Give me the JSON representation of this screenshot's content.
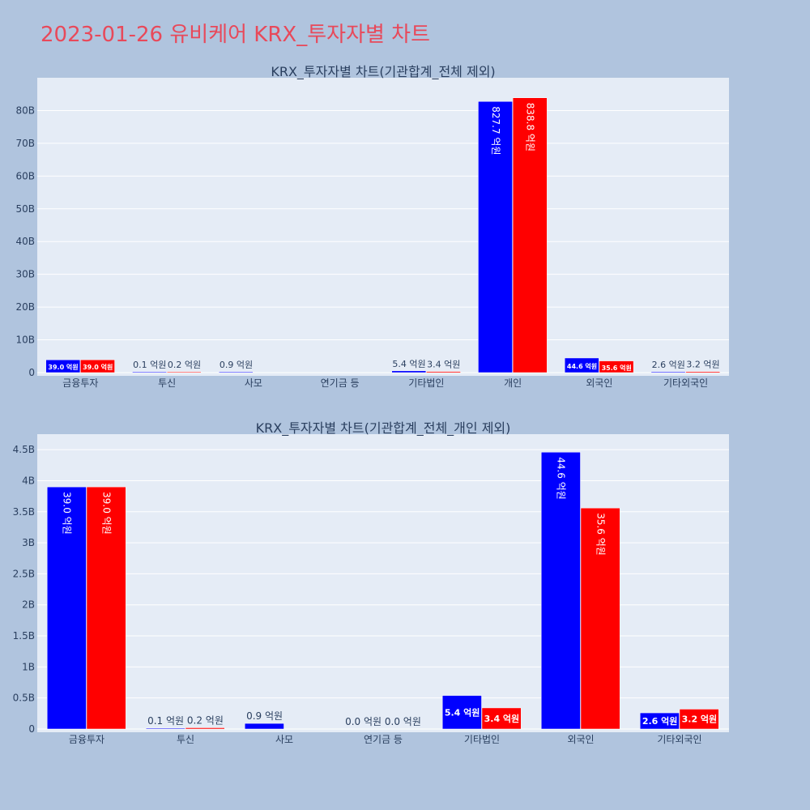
{
  "page": {
    "title": "2023-01-26 유비케어 KRX_투자자별 차트"
  },
  "colors": {
    "buy": "#0000ff",
    "sell": "#ff0000",
    "plot_bg": "#e5ecf6",
    "page_bg": "#b0c4de",
    "grid": "#ffffff"
  },
  "chart_data": [
    {
      "type": "bar",
      "title": "KRX_투자자별 차트(기관합계_전체 제외)",
      "categories": [
        "금융투자",
        "투신",
        "사모",
        "연기금 등",
        "기타법인",
        "개인",
        "외국인",
        "기타외국인"
      ],
      "series": [
        {
          "values": [
            3.9,
            0.01,
            0.09,
            0.0,
            0.54,
            82.77,
            4.46,
            0.26
          ],
          "labels": [
            "39.0 억원",
            "0.1 억원",
            "0.9 억원",
            "",
            "5.4 억원",
            "827.7 억원",
            "44.6 억원",
            "2.6 억원"
          ]
        },
        {
          "values": [
            3.9,
            0.02,
            0.0,
            0.0,
            0.34,
            83.88,
            3.56,
            0.32
          ],
          "labels": [
            "39.0 억원",
            "0.2 억원",
            "",
            "",
            "3.4 억원",
            "838.8 억원",
            "35.6 억원",
            "3.2 억원"
          ]
        }
      ],
      "ylim": [
        0,
        90
      ],
      "yticks": [
        0,
        10,
        20,
        30,
        40,
        50,
        60,
        70,
        80
      ],
      "ytick_labels": [
        "0",
        "10B",
        "20B",
        "30B",
        "40B",
        "50B",
        "60B",
        "70B",
        "80B"
      ]
    },
    {
      "type": "bar",
      "title": "KRX_투자자별 차트(기관합계_전체_개인 제외)",
      "categories": [
        "금융투자",
        "투신",
        "사모",
        "연기금 등",
        "기타법인",
        "외국인",
        "기타외국인"
      ],
      "series": [
        {
          "values": [
            3.9,
            0.01,
            0.09,
            0.0,
            0.54,
            4.46,
            0.26
          ],
          "labels": [
            "39.0 억원",
            "0.1 억원",
            "0.9 억원",
            "0.0 억원",
            "5.4 억원",
            "44.6 억원",
            "2.6 억원"
          ]
        },
        {
          "values": [
            3.9,
            0.02,
            0.0,
            0.0,
            0.34,
            3.56,
            0.32
          ],
          "labels": [
            "39.0 억원",
            "0.2 억원",
            "",
            "0.0 억원",
            "3.4 억원",
            "35.6 억원",
            "3.2 억원"
          ]
        }
      ],
      "ylim": [
        0,
        4.75
      ],
      "yticks": [
        0,
        0.5,
        1,
        1.5,
        2,
        2.5,
        3,
        3.5,
        4,
        4.5
      ],
      "ytick_labels": [
        "0",
        "0.5B",
        "1B",
        "1.5B",
        "2B",
        "2.5B",
        "3B",
        "3.5B",
        "4B",
        "4.5B"
      ]
    }
  ]
}
